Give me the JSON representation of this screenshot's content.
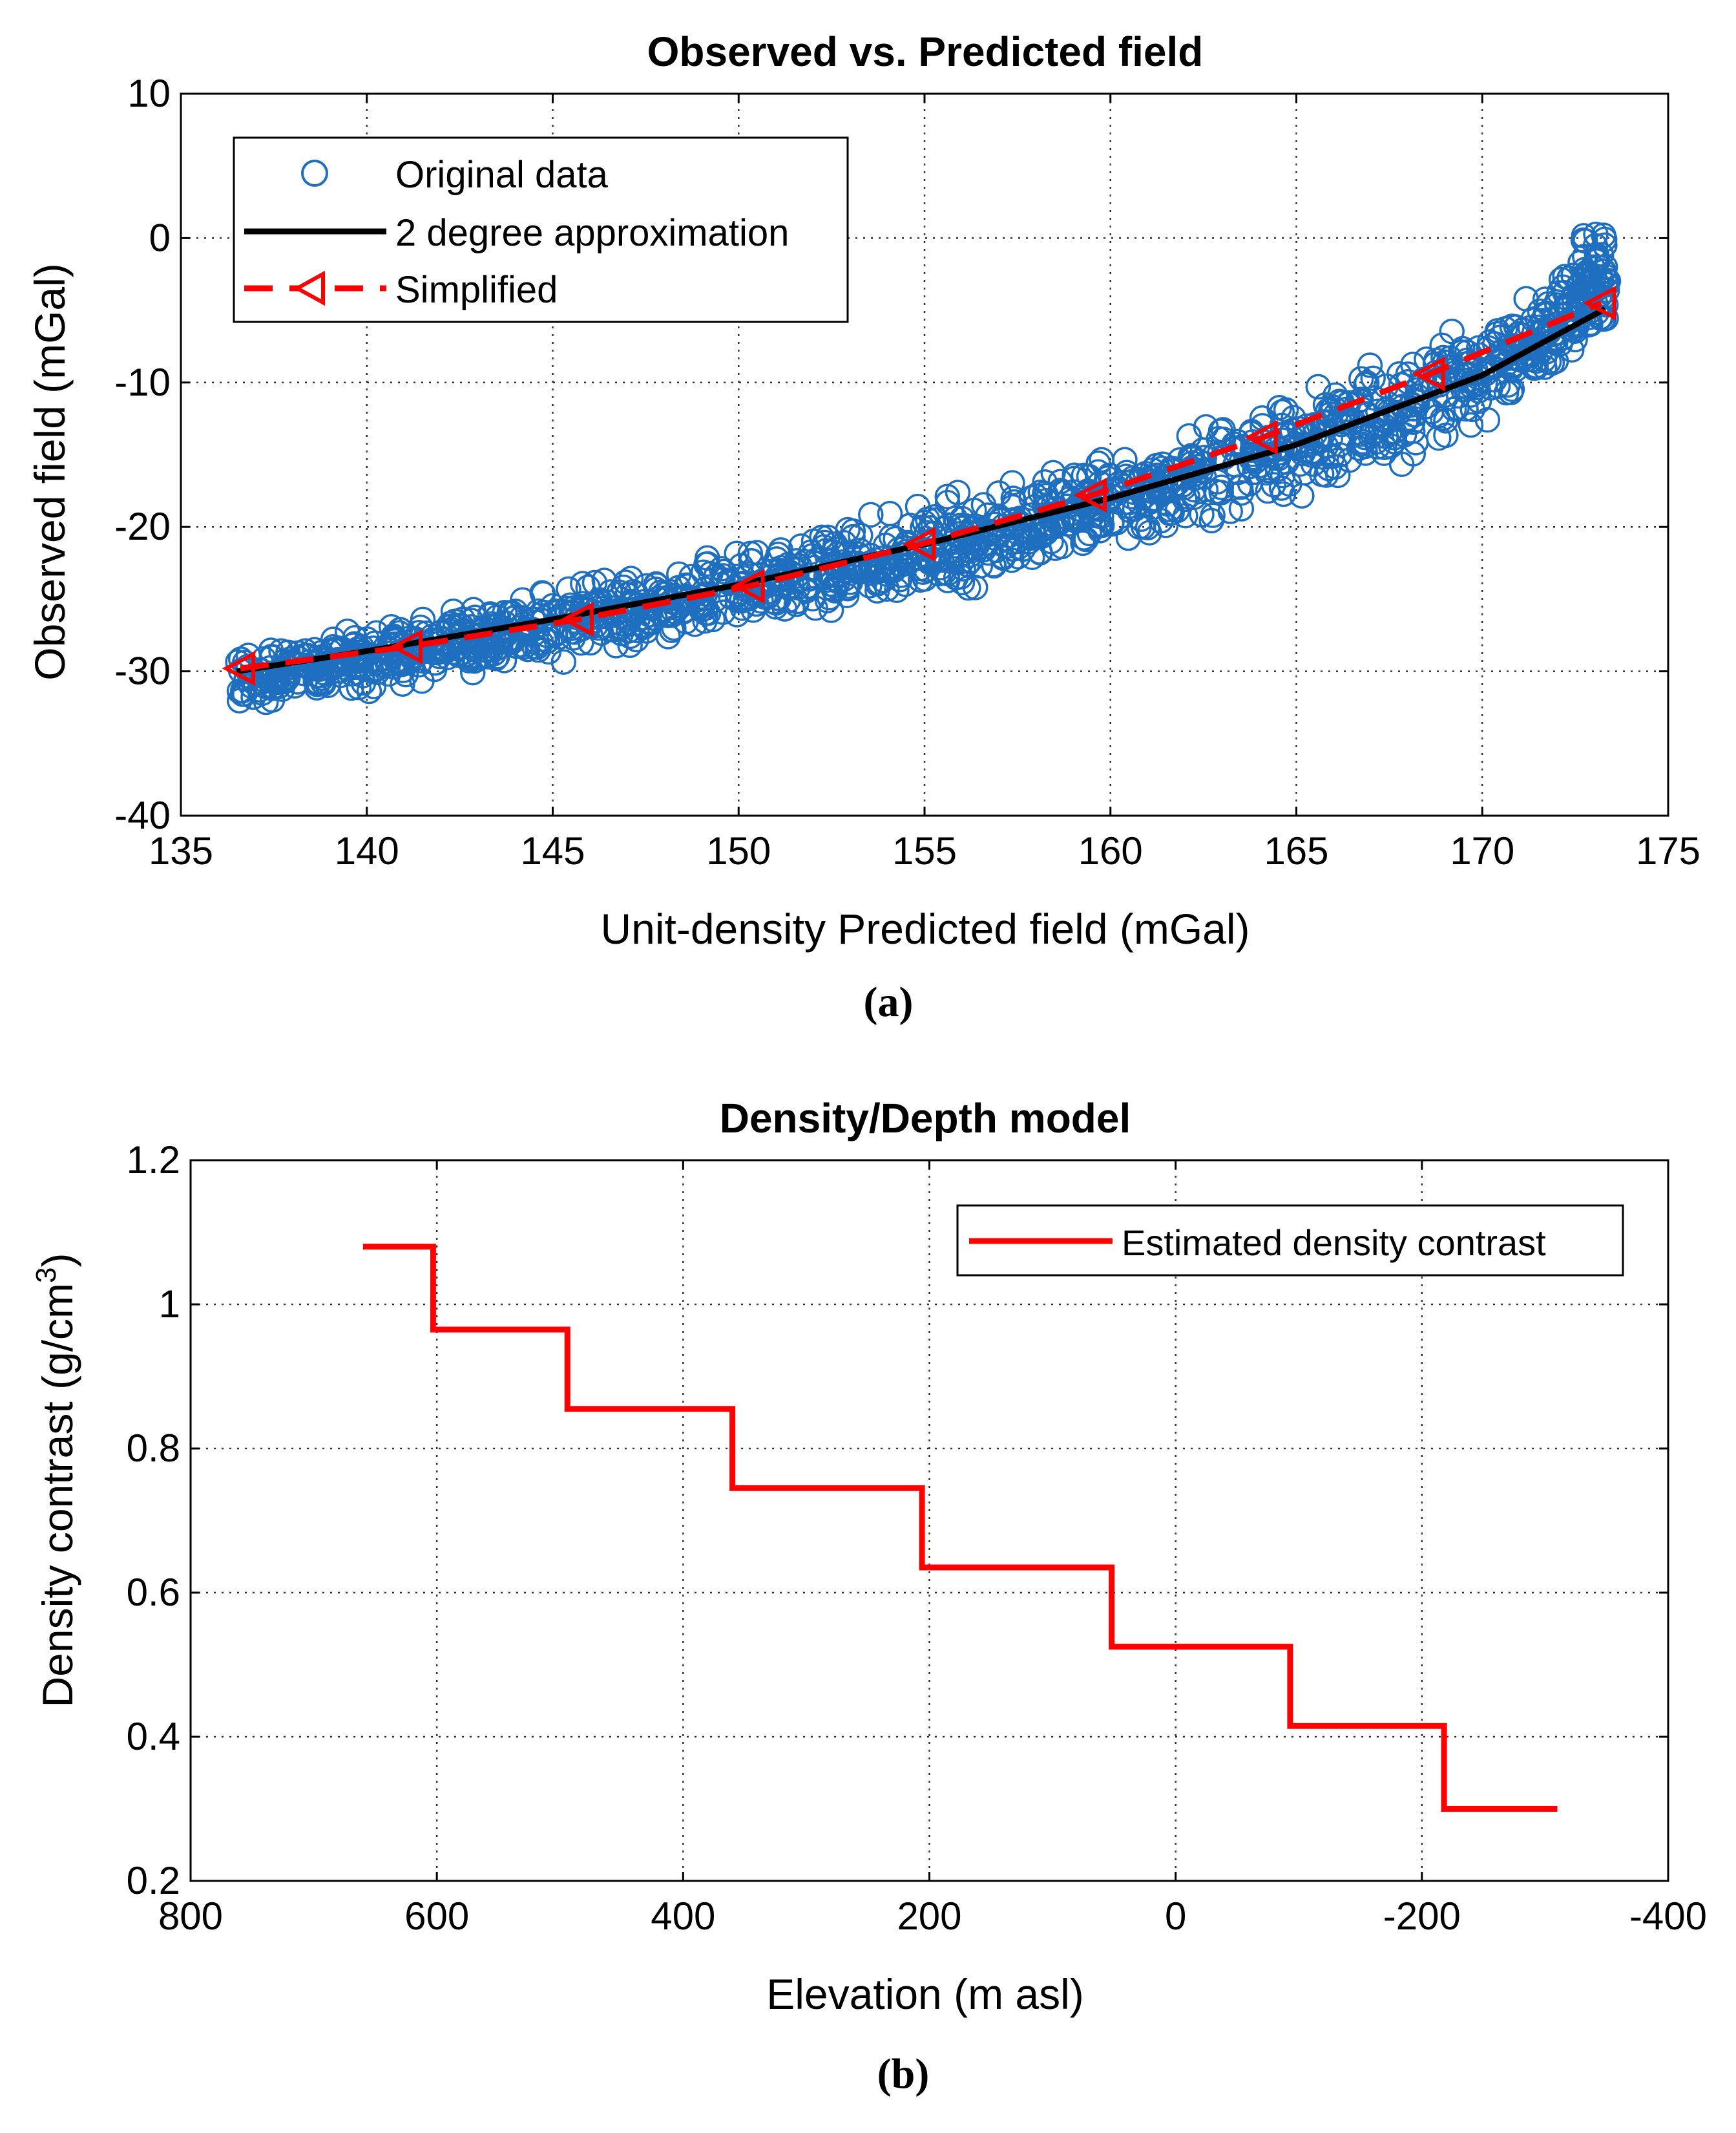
{
  "chart_data": [
    {
      "type": "scatter",
      "title": "Observed vs. Predicted field",
      "xlabel": "Unit-density Predicted field (mGal)",
      "ylabel": "Observed field (mGal)",
      "xlim": [
        135,
        175
      ],
      "ylim": [
        -40,
        10
      ],
      "xticks": [
        135,
        140,
        145,
        150,
        155,
        160,
        165,
        170,
        175
      ],
      "yticks": [
        10,
        0,
        -10,
        -20,
        -30,
        -40
      ],
      "grid": true,
      "legend_position": "top-left",
      "panel_label": "(a)",
      "series": [
        {
          "name": "Original data",
          "kind": "scatter",
          "marker": "open-circle",
          "color": "#1f6fc0",
          "trend": {
            "x": [
              136.5,
              138,
              140,
              142,
              144,
              146,
              148,
              150,
              152,
              154,
              156,
              158,
              160,
              162,
              164,
              166,
              168,
              170,
              171,
              172,
              172.5,
              173,
              173.3
            ],
            "y": [
              -30.5,
              -30.0,
              -29.2,
              -28.2,
              -27.3,
              -26.4,
              -25.4,
              -24.4,
              -23.3,
              -22.2,
              -21.0,
              -19.7,
              -18.3,
              -16.8,
              -15.2,
              -13.4,
              -11.4,
              -9.1,
              -7.8,
              -6.3,
              -5.3,
              -4.2,
              -3.5
            ]
          },
          "spread": 1.3,
          "count": 1400
        },
        {
          "name": "2 degree approximation",
          "kind": "line",
          "color": "#000000",
          "x": [
            136.5,
            140,
            145,
            150,
            155,
            160,
            165,
            170,
            173.3
          ],
          "y": [
            -30.0,
            -28.6,
            -26.4,
            -24.0,
            -21.2,
            -18.0,
            -14.3,
            -9.5,
            -4.9
          ]
        },
        {
          "name": "Simplified",
          "kind": "line",
          "style": "dashed",
          "marker": "left-triangle",
          "color": "#ff0000",
          "x": [
            136.6,
            141.1,
            145.7,
            150.3,
            154.9,
            159.5,
            164.1,
            168.6,
            173.2
          ],
          "y": [
            -29.8,
            -28.3,
            -26.4,
            -24.1,
            -21.2,
            -17.8,
            -13.8,
            -9.4,
            -4.5
          ]
        }
      ]
    },
    {
      "type": "line",
      "title": "Density/Depth model",
      "xlabel": "Elevation (m asl)",
      "ylabel": "Density contrast (g/cm",
      "ylabel_superscript": "3",
      "ylabel_suffix": ")",
      "xlim": [
        800,
        -400
      ],
      "ylim": [
        0.2,
        1.2
      ],
      "xticks": [
        800,
        600,
        400,
        200,
        0,
        -200,
        -400
      ],
      "yticks": [
        1.2,
        1,
        0.8,
        0.6,
        0.4,
        0.2
      ],
      "grid": true,
      "legend_position": "top-right",
      "panel_label": "(b)",
      "series": [
        {
          "name": "Estimated density contrast",
          "kind": "step",
          "color": "#ff0000",
          "x": [
            660,
            603,
            603,
            494,
            494,
            360,
            360,
            206,
            206,
            52,
            52,
            -93,
            -93,
            -218,
            -218,
            -310
          ],
          "y": [
            1.08,
            1.08,
            0.965,
            0.965,
            0.855,
            0.855,
            0.745,
            0.745,
            0.635,
            0.635,
            0.525,
            0.525,
            0.415,
            0.415,
            0.3,
            0.3
          ]
        }
      ]
    }
  ]
}
